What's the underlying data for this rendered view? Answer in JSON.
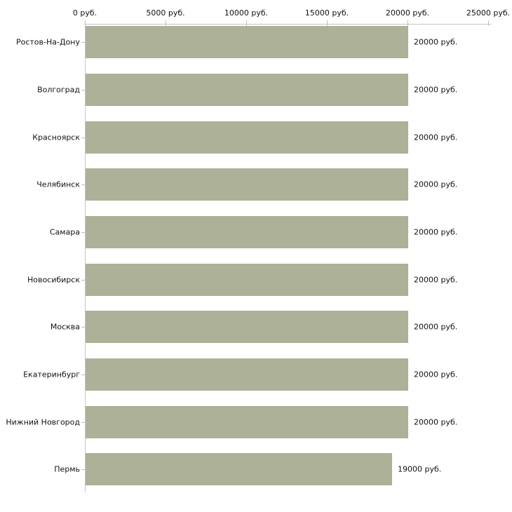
{
  "chart_data": {
    "type": "bar",
    "orientation": "horizontal",
    "title": "",
    "xlabel": "",
    "ylabel": "",
    "unit": "руб.",
    "categories": [
      "Ростов-На-Дону",
      "Волгоград",
      "Красноярск",
      "Челябинск",
      "Самара",
      "Новосибирск",
      "Москва",
      "Екатеринбург",
      "Нижний Новгород",
      "Пермь"
    ],
    "values": [
      20000,
      20000,
      20000,
      20000,
      20000,
      20000,
      20000,
      20000,
      20000,
      19000
    ],
    "value_labels": [
      "20000 руб.",
      "20000 руб.",
      "20000 руб.",
      "20000 руб.",
      "20000 руб.",
      "20000 руб.",
      "20000 руб.",
      "20000 руб.",
      "20000 руб.",
      "19000 руб."
    ],
    "x_ticks": [
      0,
      5000,
      10000,
      15000,
      20000,
      25000
    ],
    "x_tick_labels": [
      "0 руб.",
      "5000 руб.",
      "10000 руб.",
      "15000 руб.",
      "20000 руб.",
      "25000 руб."
    ],
    "xlim": [
      0,
      25000
    ],
    "grid": false,
    "legend": null,
    "colors": {
      "bar": "#acb198",
      "axis_line": "#c6c6c6",
      "tick_mark": "#c3c39b",
      "text": "#111111",
      "background": "#ffffff"
    }
  }
}
